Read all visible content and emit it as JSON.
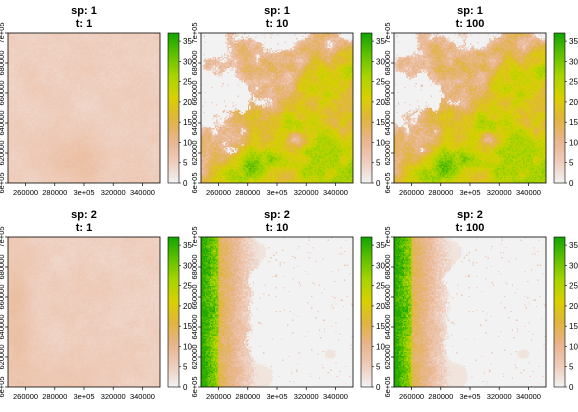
{
  "chart_data": {
    "type": "heatmap",
    "layout": {
      "rows": 2,
      "cols": 3
    },
    "x_ticks": [
      "260000",
      "280000",
      "3e+05",
      "320000",
      "340000"
    ],
    "x_tick_values": [
      260000,
      280000,
      300000,
      320000,
      340000
    ],
    "xlim": [
      248000,
      352000
    ],
    "y_ticks": [
      "6e+05",
      "620000",
      "640000",
      "660000",
      "680000",
      "7e+05"
    ],
    "y_tick_values": [
      600000,
      620000,
      640000,
      660000,
      680000,
      700000
    ],
    "ylim": [
      600000,
      700000
    ],
    "colorbar": {
      "ticks": [
        "0",
        "5",
        "10",
        "15",
        "20",
        "25",
        "30",
        "35"
      ],
      "tick_values": [
        0,
        5,
        10,
        15,
        20,
        25,
        30,
        35
      ],
      "range": [
        0,
        37
      ],
      "colors": [
        "#f2f2f2",
        "#eeccbb",
        "#e8b48c",
        "#e0b53c",
        "#d8d000",
        "#a8d400",
        "#5fc000",
        "#12a400"
      ]
    },
    "panels": [
      {
        "title_line1": "sp: 1",
        "title_line2": "t: 1",
        "species": 1,
        "time": 1
      },
      {
        "title_line1": "sp: 1",
        "title_line2": "t: 10",
        "species": 1,
        "time": 10
      },
      {
        "title_line1": "sp: 1",
        "title_line2": "t: 100",
        "species": 1,
        "time": 100
      },
      {
        "title_line1": "sp: 2",
        "title_line2": "t: 1",
        "species": 2,
        "time": 1
      },
      {
        "title_line1": "sp: 2",
        "title_line2": "t: 10",
        "species": 2,
        "time": 10
      },
      {
        "title_line1": "sp: 2",
        "title_line2": "t: 100",
        "species": 2,
        "time": 100
      }
    ]
  }
}
